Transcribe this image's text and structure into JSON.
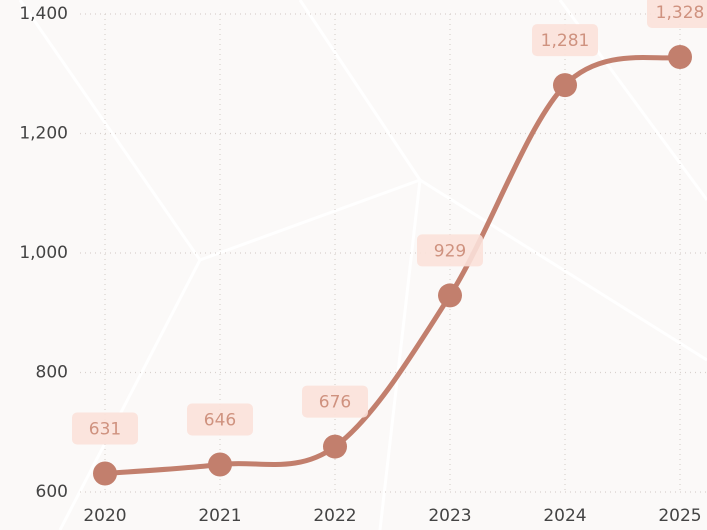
{
  "chart_data": {
    "type": "line",
    "categories": [
      "2020",
      "2021",
      "2022",
      "2023",
      "2024",
      "2025"
    ],
    "values": [
      631,
      646,
      676,
      929,
      1281,
      1328
    ],
    "value_labels": [
      "631",
      "646",
      "676",
      "929",
      "1,281",
      "1,328"
    ],
    "color": "#c27f6d",
    "ylim": [
      600,
      1400
    ],
    "yticks": [
      600,
      800,
      {
        "value": 1000,
        "label": "1,000"
      },
      {
        "value": 1200,
        "label": "1,200"
      },
      {
        "value": 1400,
        "label": "1,400"
      }
    ],
    "grid": true
  }
}
